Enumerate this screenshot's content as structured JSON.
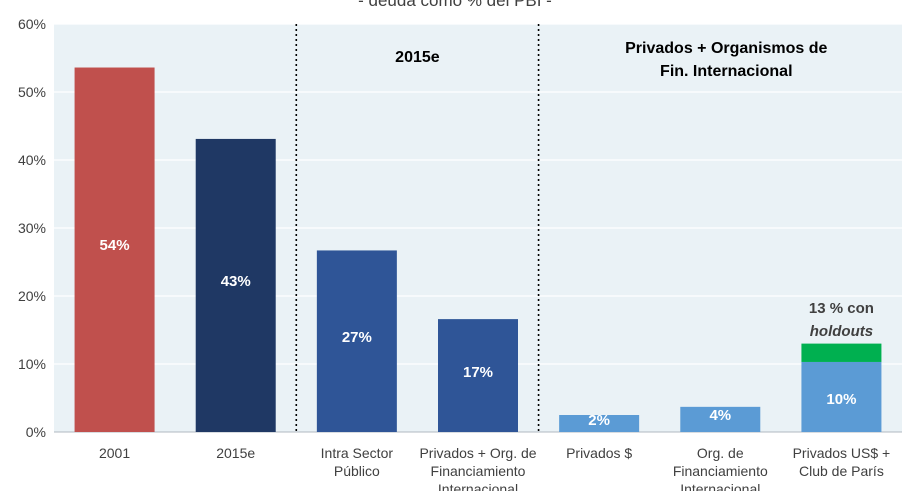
{
  "chart_data": {
    "type": "bar",
    "title": "- deuda como % del PBI -",
    "ylim": [
      0,
      60
    ],
    "yticks": [
      0,
      10,
      20,
      30,
      40,
      50,
      60
    ],
    "ytick_labels": [
      "0%",
      "10%",
      "20%",
      "30%",
      "40%",
      "50%",
      "60%"
    ],
    "categories": [
      [
        "2001"
      ],
      [
        "2015e"
      ],
      [
        "Intra Sector",
        "Público"
      ],
      [
        "Privados + Org. de",
        "Financiamiento",
        "Internacional"
      ],
      [
        "Privados $"
      ],
      [
        "Org. de",
        "Financiamiento",
        "Internacional"
      ],
      [
        "Privados US$ +",
        "Club de París"
      ]
    ],
    "values": [
      54,
      43,
      27,
      17,
      2,
      4,
      10
    ],
    "value_labels": [
      "54%",
      "43%",
      "27%",
      "17%",
      "2%",
      "4%",
      "10%"
    ],
    "stacked_extra": {
      "category_index": 6,
      "base": 10.3,
      "value": 2.7,
      "total_label": "13 %  con",
      "total_label_italic": "holdouts"
    },
    "bar_values_exact": [
      53.6,
      43.1,
      26.7,
      16.6,
      2.5,
      3.7,
      10.3
    ],
    "sections": [
      {
        "label": [
          "2015e"
        ],
        "from": 2,
        "to": 3
      },
      {
        "label": [
          "Privados + Organismos  de",
          "Fin. Internacional"
        ],
        "from": 4,
        "to": 6
      }
    ],
    "colors": {
      "bar_2001": "#c0504d",
      "bar_2015": "#1f3864",
      "bar_mid": "#2f5597",
      "bar_light": "#5b9bd5",
      "holdouts": "#00b050",
      "plot_bg": "#eaf2f6",
      "grid": "#ffffff",
      "text": "#404040",
      "label_text": "#ffffff",
      "divider": "#000000"
    }
  }
}
